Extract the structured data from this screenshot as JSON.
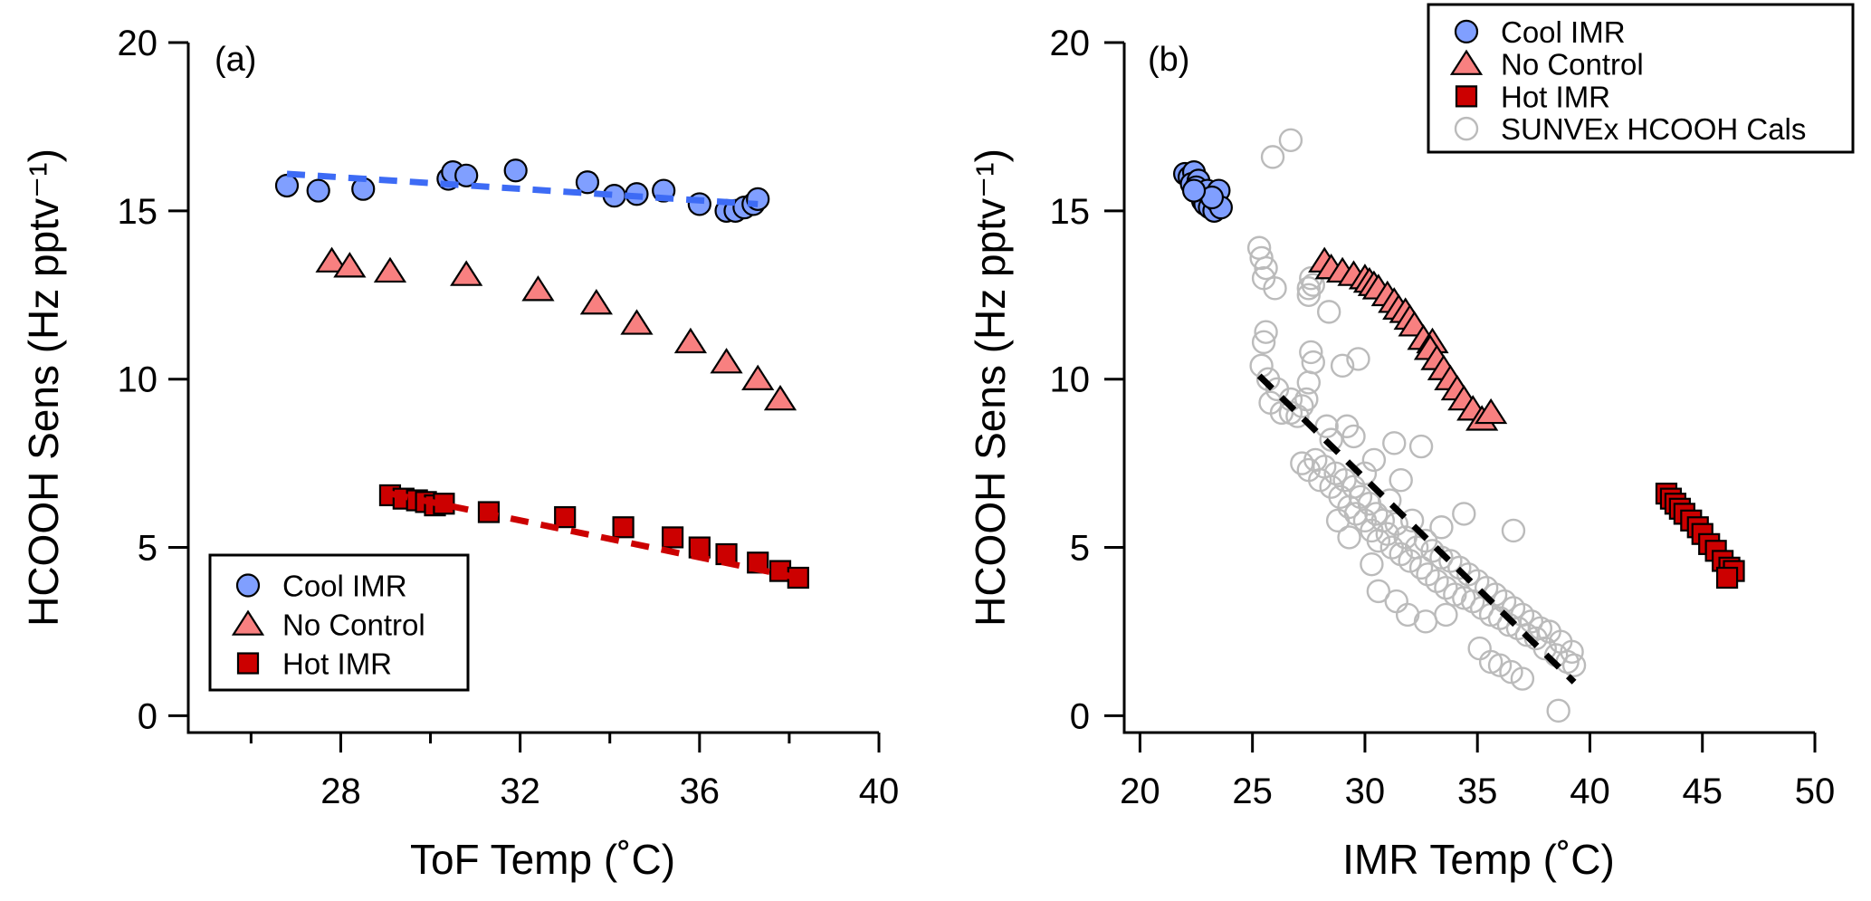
{
  "chart_data": [
    {
      "type": "scatter",
      "panel_label": "(a)",
      "xlabel": "ToF Temp (˚C)",
      "ylabel": "HCOOH Sens (Hz pptv⁻¹)",
      "xlim": [
        24.6,
        40
      ],
      "ylim": [
        -0.5,
        20
      ],
      "xticks": [
        "28",
        "32",
        "36",
        "40"
      ],
      "xtick_values": [
        28,
        32,
        36,
        40
      ],
      "xminor_values": [
        26,
        30,
        34,
        38
      ],
      "yticks": [
        "0",
        "5",
        "10",
        "15",
        "20"
      ],
      "ytick_values": [
        0,
        5,
        10,
        15,
        20
      ],
      "grid": false,
      "legend_placement": "bottom-left",
      "legend": [
        "Cool IMR",
        "No Control",
        "Hot IMR"
      ],
      "series": [
        {
          "name": "Cool IMR",
          "marker": "circle",
          "color": "#809FFF",
          "points": [
            [
              26.8,
              15.75
            ],
            [
              27.5,
              15.6
            ],
            [
              28.5,
              15.65
            ],
            [
              30.4,
              15.95
            ],
            [
              30.5,
              16.15
            ],
            [
              30.8,
              16.05
            ],
            [
              31.9,
              16.2
            ],
            [
              33.5,
              15.85
            ],
            [
              34.1,
              15.45
            ],
            [
              34.6,
              15.5
            ],
            [
              35.2,
              15.6
            ],
            [
              36.0,
              15.2
            ],
            [
              36.6,
              15.0
            ],
            [
              36.8,
              15.0
            ],
            [
              37.0,
              15.1
            ],
            [
              37.2,
              15.2
            ],
            [
              37.3,
              15.35
            ]
          ],
          "fit": [
            [
              26.8,
              16.1
            ],
            [
              37.3,
              15.2
            ]
          ],
          "fit_color": "#3D6BF5"
        },
        {
          "name": "No Control",
          "marker": "triangle",
          "color": "#F88080",
          "points": [
            [
              27.8,
              13.5
            ],
            [
              28.2,
              13.35
            ],
            [
              29.1,
              13.2
            ],
            [
              30.8,
              13.1
            ],
            [
              32.4,
              12.65
            ],
            [
              33.7,
              12.25
            ],
            [
              34.6,
              11.65
            ],
            [
              35.8,
              11.1
            ],
            [
              36.6,
              10.5
            ],
            [
              37.3,
              10.0
            ],
            [
              37.8,
              9.4
            ]
          ]
        },
        {
          "name": "Hot IMR",
          "marker": "square",
          "color": "#CC0000",
          "points": [
            [
              29.1,
              6.55
            ],
            [
              29.4,
              6.45
            ],
            [
              29.7,
              6.4
            ],
            [
              29.9,
              6.35
            ],
            [
              30.1,
              6.25
            ],
            [
              30.3,
              6.3
            ],
            [
              31.3,
              6.05
            ],
            [
              33.0,
              5.9
            ],
            [
              34.3,
              5.6
            ],
            [
              35.4,
              5.3
            ],
            [
              36.0,
              5.0
            ],
            [
              36.6,
              4.8
            ],
            [
              37.3,
              4.55
            ],
            [
              37.8,
              4.3
            ],
            [
              38.2,
              4.1
            ]
          ],
          "fit": [
            [
              29.1,
              6.6
            ],
            [
              38.2,
              4.1
            ]
          ],
          "fit_color": "#CC0000"
        }
      ]
    },
    {
      "type": "scatter",
      "panel_label": "(b)",
      "xlabel": "IMR Temp (˚C)",
      "ylabel": "HCOOH Sens (Hz pptv⁻¹)",
      "xlim": [
        19.3,
        50
      ],
      "ylim": [
        -0.5,
        20
      ],
      "xticks": [
        "20",
        "25",
        "30",
        "35",
        "40",
        "45",
        "50"
      ],
      "xtick_values": [
        20,
        25,
        30,
        35,
        40,
        45,
        50
      ],
      "xminor_values": [],
      "yticks": [
        "0",
        "5",
        "10",
        "15",
        "20"
      ],
      "ytick_values": [
        0,
        5,
        10,
        15,
        20
      ],
      "grid": false,
      "legend_placement": "top-right",
      "legend": [
        "Cool IMR",
        "No Control",
        "Hot IMR",
        "SUNVEx HCOOH Cals"
      ],
      "series": [
        {
          "name": "SUNVEx HCOOH Cals",
          "marker": "open-circle",
          "color": "#BBBBBB",
          "points": [
            [
              25.3,
              13.9
            ],
            [
              25.4,
              13.6
            ],
            [
              25.6,
              13.3
            ],
            [
              25.5,
              13.0
            ],
            [
              26.0,
              12.7
            ],
            [
              25.9,
              16.6
            ],
            [
              26.7,
              17.1
            ],
            [
              27.5,
              12.7
            ],
            [
              27.6,
              13.0
            ],
            [
              27.7,
              12.8
            ],
            [
              27.5,
              12.5
            ],
            [
              28.4,
              12.0
            ],
            [
              27.6,
              10.8
            ],
            [
              27.7,
              10.5
            ],
            [
              29.0,
              10.4
            ],
            [
              29.7,
              10.6
            ],
            [
              25.5,
              11.1
            ],
            [
              25.6,
              11.4
            ],
            [
              25.4,
              10.4
            ],
            [
              25.7,
              10.0
            ],
            [
              26.1,
              9.7
            ],
            [
              25.8,
              9.3
            ],
            [
              26.3,
              9.0
            ],
            [
              26.7,
              9.0
            ],
            [
              27.5,
              9.9
            ],
            [
              27.4,
              9.4
            ],
            [
              27.2,
              9.2
            ],
            [
              28.3,
              8.6
            ],
            [
              28.5,
              8.2
            ],
            [
              29.5,
              8.3
            ],
            [
              31.3,
              8.1
            ],
            [
              27.0,
              8.9
            ],
            [
              26.7,
              9.4
            ],
            [
              27.2,
              7.5
            ],
            [
              27.5,
              7.3
            ],
            [
              27.8,
              7.6
            ],
            [
              28.0,
              7.0
            ],
            [
              28.2,
              7.4
            ],
            [
              28.5,
              6.8
            ],
            [
              28.7,
              7.2
            ],
            [
              28.9,
              6.5
            ],
            [
              29.1,
              7.0
            ],
            [
              29.3,
              6.2
            ],
            [
              29.5,
              6.8
            ],
            [
              29.6,
              6.0
            ],
            [
              29.8,
              6.5
            ],
            [
              30.0,
              5.8
            ],
            [
              30.2,
              6.3
            ],
            [
              30.3,
              5.5
            ],
            [
              30.5,
              6.0
            ],
            [
              30.6,
              5.2
            ],
            [
              30.8,
              5.8
            ],
            [
              31.0,
              5.4
            ],
            [
              31.1,
              6.4
            ],
            [
              31.2,
              5.0
            ],
            [
              31.4,
              5.7
            ],
            [
              31.6,
              4.8
            ],
            [
              31.8,
              5.3
            ],
            [
              32.0,
              4.6
            ],
            [
              32.1,
              5.8
            ],
            [
              32.3,
              5.0
            ],
            [
              32.5,
              4.4
            ],
            [
              32.7,
              5.2
            ],
            [
              32.8,
              4.2
            ],
            [
              33.0,
              4.9
            ],
            [
              33.2,
              4.0
            ],
            [
              33.4,
              4.7
            ],
            [
              33.6,
              3.8
            ],
            [
              33.8,
              4.6
            ],
            [
              34.0,
              3.6
            ],
            [
              34.2,
              4.4
            ],
            [
              34.4,
              3.5
            ],
            [
              34.6,
              4.2
            ],
            [
              34.8,
              3.4
            ],
            [
              35.0,
              4.0
            ],
            [
              35.2,
              3.2
            ],
            [
              35.4,
              3.8
            ],
            [
              35.6,
              3.0
            ],
            [
              35.8,
              3.6
            ],
            [
              36.0,
              2.9
            ],
            [
              36.2,
              3.4
            ],
            [
              36.4,
              2.7
            ],
            [
              36.6,
              3.2
            ],
            [
              36.8,
              2.6
            ],
            [
              37.0,
              3.0
            ],
            [
              37.2,
              2.4
            ],
            [
              37.4,
              2.8
            ],
            [
              37.6,
              2.3
            ],
            [
              37.8,
              2.6
            ],
            [
              38.0,
              2.0
            ],
            [
              38.2,
              2.5
            ],
            [
              38.5,
              1.8
            ],
            [
              38.7,
              2.2
            ],
            [
              39.0,
              1.6
            ],
            [
              39.2,
              1.9
            ],
            [
              39.3,
              1.5
            ],
            [
              30.0,
              7.2
            ],
            [
              30.4,
              7.6
            ],
            [
              29.2,
              8.6
            ],
            [
              31.6,
              7.0
            ],
            [
              32.5,
              8.0
            ],
            [
              33.4,
              5.6
            ],
            [
              34.4,
              6.0
            ],
            [
              36.6,
              5.5
            ],
            [
              30.6,
              3.7
            ],
            [
              31.4,
              3.4
            ],
            [
              31.9,
              3.0
            ],
            [
              32.7,
              2.8
            ],
            [
              33.6,
              3.0
            ],
            [
              35.1,
              2.0
            ],
            [
              35.6,
              1.6
            ],
            [
              36.0,
              1.5
            ],
            [
              36.5,
              1.3
            ],
            [
              37.0,
              1.1
            ],
            [
              38.6,
              0.15
            ],
            [
              30.3,
              4.5
            ],
            [
              29.3,
              5.3
            ],
            [
              28.8,
              5.8
            ]
          ],
          "fit": [
            [
              25.3,
              10.1
            ],
            [
              39.3,
              1.0
            ]
          ],
          "fit_color": "#000000"
        },
        {
          "name": "Cool IMR",
          "marker": "circle",
          "color": "#809FFF",
          "points": [
            [
              22.0,
              16.1
            ],
            [
              22.2,
              16.0
            ],
            [
              22.4,
              16.15
            ],
            [
              22.3,
              15.8
            ],
            [
              22.6,
              15.9
            ],
            [
              22.5,
              15.7
            ],
            [
              22.7,
              15.5
            ],
            [
              22.8,
              15.3
            ],
            [
              23.0,
              15.6
            ],
            [
              22.9,
              15.2
            ],
            [
              23.1,
              15.1
            ],
            [
              23.3,
              15.0
            ],
            [
              23.4,
              15.3
            ],
            [
              23.5,
              15.6
            ],
            [
              23.6,
              15.1
            ],
            [
              23.2,
              15.4
            ],
            [
              22.4,
              15.6
            ]
          ]
        },
        {
          "name": "No Control",
          "marker": "triangle",
          "color": "#F88080",
          "points": [
            [
              28.2,
              13.5
            ],
            [
              28.5,
              13.3
            ],
            [
              29.0,
              13.2
            ],
            [
              29.5,
              13.1
            ],
            [
              30.0,
              13.0
            ],
            [
              30.2,
              12.9
            ],
            [
              30.4,
              12.8
            ],
            [
              30.6,
              12.7
            ],
            [
              31.0,
              12.5
            ],
            [
              31.3,
              12.3
            ],
            [
              31.5,
              12.1
            ],
            [
              31.8,
              12.0
            ],
            [
              32.0,
              11.8
            ],
            [
              32.2,
              11.6
            ],
            [
              32.6,
              11.2
            ],
            [
              33.0,
              11.1
            ],
            [
              32.9,
              10.9
            ],
            [
              33.2,
              10.6
            ],
            [
              33.5,
              10.3
            ],
            [
              33.8,
              10.0
            ],
            [
              34.1,
              9.7
            ],
            [
              34.4,
              9.4
            ],
            [
              34.8,
              9.1
            ],
            [
              35.2,
              8.8
            ],
            [
              35.6,
              9.0
            ]
          ]
        },
        {
          "name": "Hot IMR",
          "marker": "square",
          "color": "#CC0000",
          "points": [
            [
              43.4,
              6.6
            ],
            [
              43.6,
              6.45
            ],
            [
              43.8,
              6.3
            ],
            [
              44.0,
              6.15
            ],
            [
              44.2,
              6.0
            ],
            [
              44.5,
              5.8
            ],
            [
              44.8,
              5.6
            ],
            [
              45.0,
              5.4
            ],
            [
              45.3,
              5.1
            ],
            [
              45.6,
              4.9
            ],
            [
              45.9,
              4.6
            ],
            [
              46.2,
              4.4
            ],
            [
              46.4,
              4.3
            ],
            [
              46.1,
              4.1
            ]
          ]
        }
      ]
    }
  ]
}
